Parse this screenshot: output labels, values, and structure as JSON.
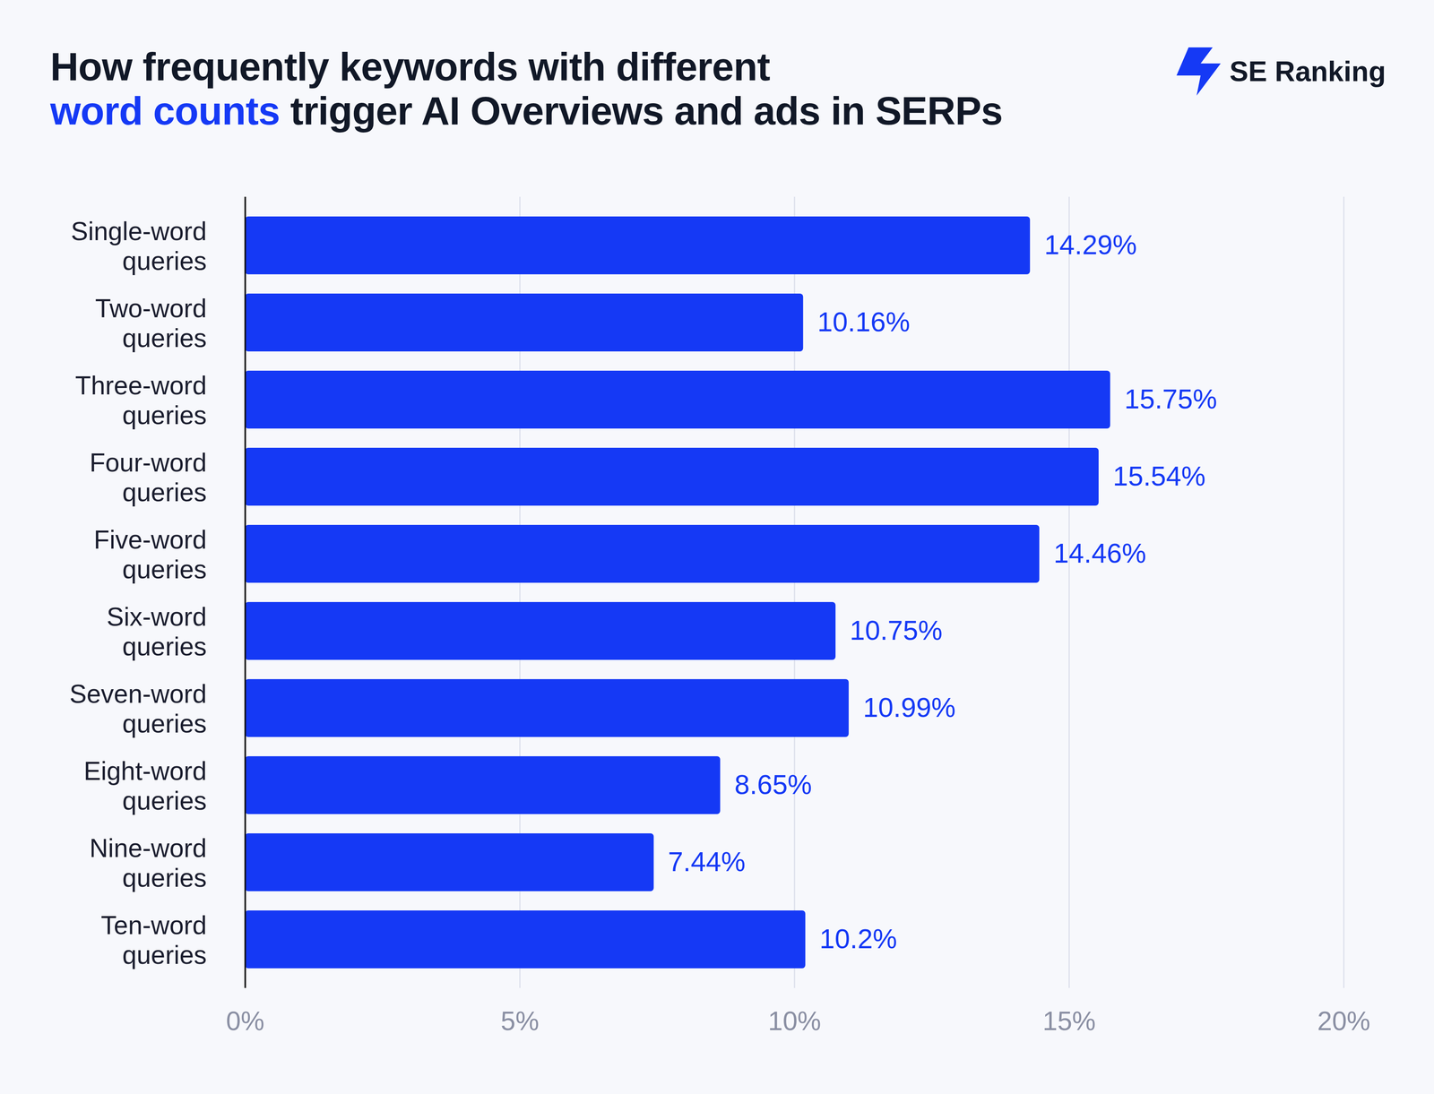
{
  "chart_data": {
    "type": "bar",
    "title": "How frequently keywords with different word counts trigger AI Overviews and ads in SERPs",
    "source": "SE Ranking",
    "orientation": "horizontal",
    "categories": [
      "Single-word queries",
      "Two-word queries",
      "Three-word queries",
      "Four-word queries",
      "Five-word queries",
      "Six-word queries",
      "Seven-word queries",
      "Eight-word queries",
      "Nine-word queries",
      "Ten-word queries"
    ],
    "values": [
      14.29,
      10.16,
      15.75,
      15.54,
      14.46,
      10.75,
      10.99,
      8.65,
      7.44,
      10.2
    ],
    "value_labels": [
      "14.29%",
      "10.16%",
      "15.75%",
      "15.54%",
      "14.46%",
      "10.75%",
      "10.99%",
      "8.65%",
      "7.44%",
      "10.2%"
    ],
    "data_labels": true,
    "color": "#1539f5",
    "xlim": [
      0,
      20
    ],
    "xticks": [
      {
        "value": 0,
        "label": "0%"
      },
      {
        "value": 5,
        "label": "5%"
      },
      {
        "value": 10,
        "label": "10%"
      },
      {
        "value": 15,
        "label": "15%"
      },
      {
        "value": 20,
        "label": "20%"
      }
    ],
    "grid": true
  }
}
